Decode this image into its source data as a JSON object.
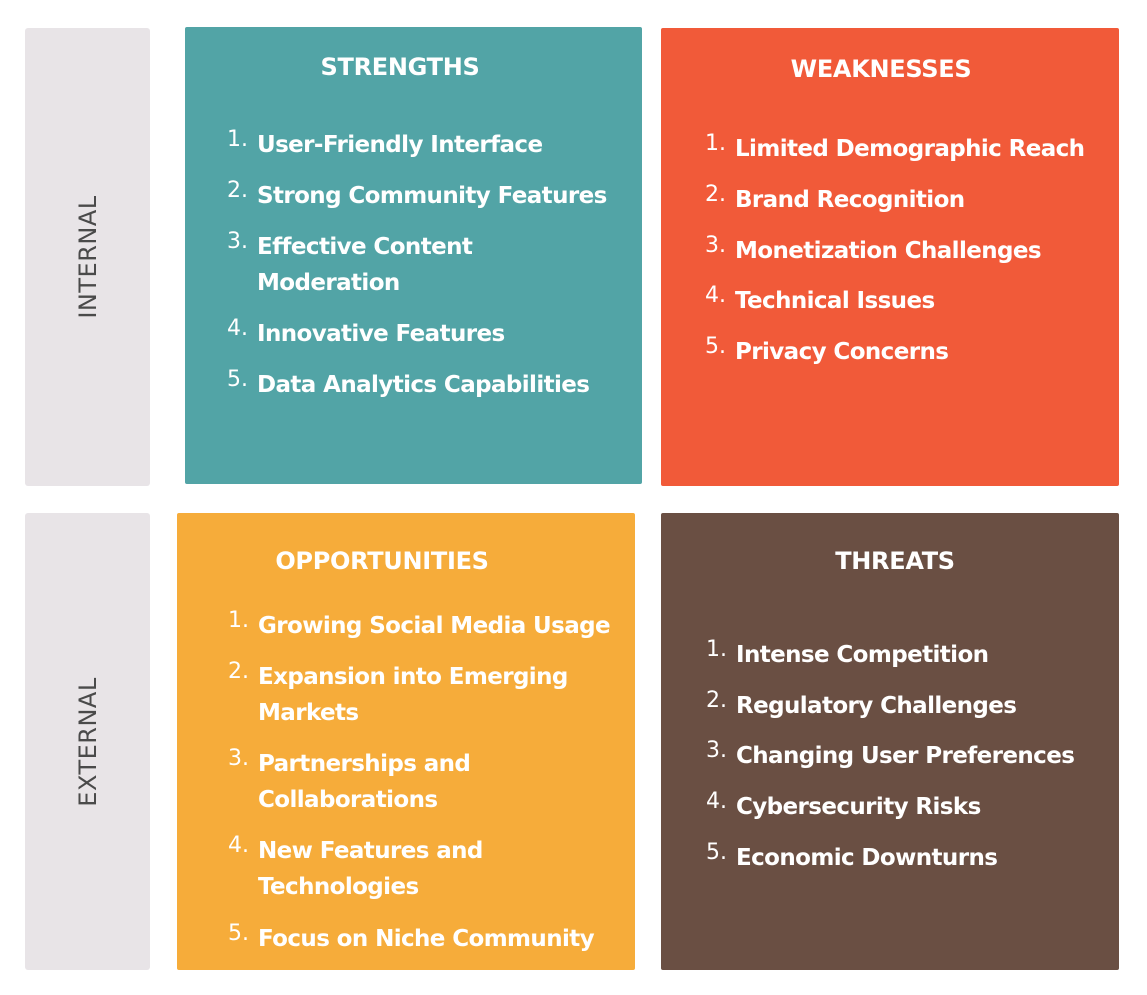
{
  "side_labels": {
    "internal": "INTERNAL",
    "external": "EXTERNAL"
  },
  "colors": {
    "strengths": "#52a4a6",
    "weaknesses": "#f15a39",
    "opportunities": "#f6ac3a",
    "threats": "#6a4f43",
    "side_label_bg": "#e8e4e7"
  },
  "strengths": {
    "title": "STRENGTHS",
    "items": [
      {
        "num": "1.",
        "lines": [
          "User-Friendly Interface"
        ]
      },
      {
        "num": "2.",
        "lines": [
          "Strong Community Features"
        ]
      },
      {
        "num": "3.",
        "lines": [
          "Effective Content",
          "Moderation"
        ]
      },
      {
        "num": "4.",
        "lines": [
          "Innovative Features"
        ]
      },
      {
        "num": "5.",
        "lines": [
          "Data Analytics Capabilities"
        ]
      }
    ]
  },
  "weaknesses": {
    "title": "WEAKNESSES",
    "items": [
      {
        "num": "1.",
        "lines": [
          "Limited Demographic Reach"
        ]
      },
      {
        "num": "2.",
        "lines": [
          "Brand Recognition"
        ]
      },
      {
        "num": "3.",
        "lines": [
          "Monetization Challenges"
        ]
      },
      {
        "num": "4.",
        "lines": [
          "Technical Issues"
        ]
      },
      {
        "num": "5.",
        "lines": [
          "Privacy Concerns"
        ]
      }
    ]
  },
  "opportunities": {
    "title": "OPPORTUNITIES",
    "items": [
      {
        "num": "1.",
        "lines": [
          "Growing Social Media Usage"
        ]
      },
      {
        "num": "2.",
        "lines": [
          "Expansion into Emerging",
          "Markets"
        ]
      },
      {
        "num": "3.",
        "lines": [
          "Partnerships and",
          "Collaborations"
        ]
      },
      {
        "num": "4.",
        "lines": [
          "New Features and",
          "Technologies"
        ]
      },
      {
        "num": "5.",
        "lines": [
          "Focus on Niche Community"
        ]
      }
    ]
  },
  "threats": {
    "title": "THREATS",
    "items": [
      {
        "num": "1.",
        "lines": [
          "Intense Competition"
        ]
      },
      {
        "num": "2.",
        "lines": [
          "Regulatory Challenges"
        ]
      },
      {
        "num": "3.",
        "lines": [
          "Changing User Preferences"
        ]
      },
      {
        "num": "4.",
        "lines": [
          "Cybersecurity Risks"
        ]
      },
      {
        "num": "5.",
        "lines": [
          "Economic Downturns"
        ]
      }
    ]
  }
}
